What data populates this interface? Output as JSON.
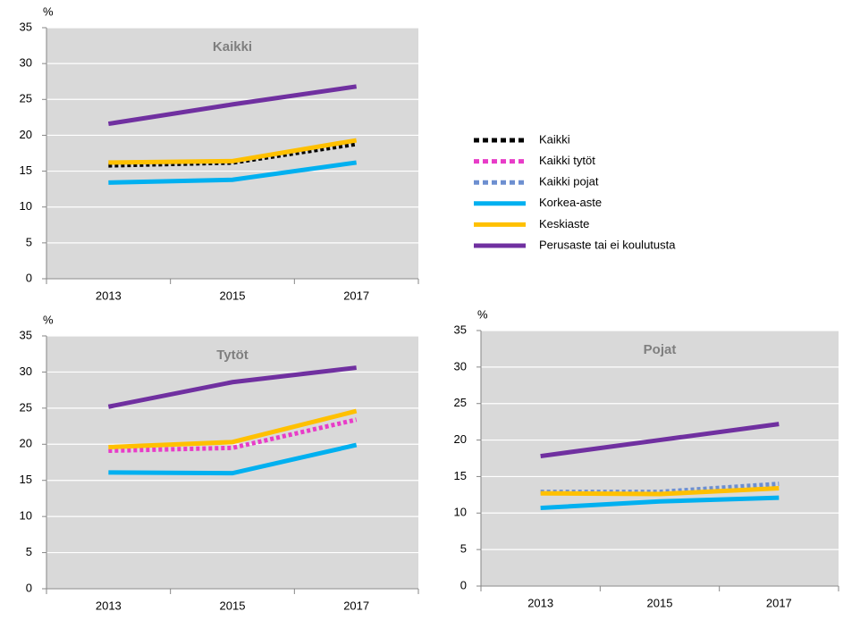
{
  "chart_data": [
    {
      "type": "line",
      "title": "Kaikki",
      "y_label": "%",
      "categories": [
        "2013",
        "2015",
        "2017"
      ],
      "ylim": [
        0,
        35
      ],
      "yticks": [
        0,
        5,
        10,
        15,
        20,
        25,
        30,
        35
      ],
      "grid": true,
      "series": [
        {
          "name": "Kaikki",
          "values": [
            15.8,
            16.2,
            18.8
          ]
        },
        {
          "name": "Korkea-aste",
          "values": [
            13.4,
            13.8,
            16.2
          ]
        },
        {
          "name": "Keskiaste",
          "values": [
            16.2,
            16.4,
            19.3
          ]
        },
        {
          "name": "Perusaste tai ei koulutusta",
          "values": [
            21.6,
            24.3,
            26.8
          ]
        }
      ]
    },
    {
      "type": "line",
      "title": "Tytöt",
      "y_label": "%",
      "categories": [
        "2013",
        "2015",
        "2017"
      ],
      "ylim": [
        0,
        35
      ],
      "yticks": [
        0,
        5,
        10,
        15,
        20,
        25,
        30,
        35
      ],
      "grid": true,
      "series": [
        {
          "name": "Kaikki tytöt",
          "values": [
            19.1,
            19.5,
            23.4
          ]
        },
        {
          "name": "Korkea-aste",
          "values": [
            16.1,
            16.0,
            19.9
          ]
        },
        {
          "name": "Keskiaste",
          "values": [
            19.6,
            20.3,
            24.6
          ]
        },
        {
          "name": "Perusaste tai ei koulutusta",
          "values": [
            25.2,
            28.6,
            30.6
          ]
        }
      ]
    },
    {
      "type": "line",
      "title": "Pojat",
      "y_label": "%",
      "categories": [
        "2013",
        "2015",
        "2017"
      ],
      "ylim": [
        0,
        35
      ],
      "yticks": [
        0,
        5,
        10,
        15,
        20,
        25,
        30,
        35
      ],
      "grid": true,
      "series": [
        {
          "name": "Kaikki pojat",
          "values": [
            12.9,
            12.9,
            14.0
          ]
        },
        {
          "name": "Korkea-aste",
          "values": [
            10.7,
            11.6,
            12.1
          ]
        },
        {
          "name": "Keskiaste",
          "values": [
            12.7,
            12.6,
            13.4
          ]
        },
        {
          "name": "Perusaste tai ei koulutusta",
          "values": [
            17.8,
            20.0,
            22.2
          ]
        }
      ]
    }
  ],
  "legend": [
    {
      "name": "Kaikki",
      "color": "#000000",
      "dotted": true
    },
    {
      "name": "Kaikki tytöt",
      "color": "#e83cc8",
      "dotted": true
    },
    {
      "name": "Kaikki pojat",
      "color": "#6d8fd0",
      "dotted": true
    },
    {
      "name": "Korkea-aste",
      "color": "#00b0f0",
      "dotted": false
    },
    {
      "name": "Keskiaste",
      "color": "#ffc000",
      "dotted": false
    },
    {
      "name": "Perusaste tai ei koulutusta",
      "color": "#7030a0",
      "dotted": false
    }
  ]
}
